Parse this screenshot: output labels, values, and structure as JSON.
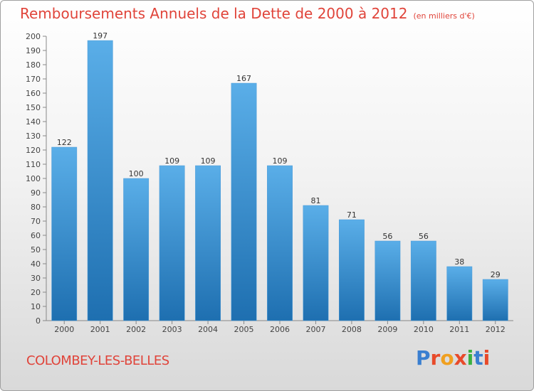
{
  "chart_data": {
    "type": "bar",
    "title": "Remboursements Annuels de la Dette de 2000 à 2012",
    "subtitle": "(en milliers d'€)",
    "categories": [
      "2000",
      "2001",
      "2002",
      "2003",
      "2004",
      "2005",
      "2006",
      "2007",
      "2008",
      "2009",
      "2010",
      "2011",
      "2012"
    ],
    "values": [
      122,
      197,
      100,
      109,
      109,
      167,
      109,
      81,
      71,
      56,
      56,
      38,
      29
    ],
    "ylim": [
      0,
      200
    ],
    "ytick_step": 10,
    "xlabel": "",
    "ylabel": "",
    "grid": false,
    "legend": "none"
  },
  "footer": {
    "city": "COLOMBEY-LES-BELLES",
    "brand": "Proxiti"
  },
  "colors": {
    "title": "#e0443a",
    "bar_top": "#5aaee8",
    "bar_bottom": "#1e6fb0",
    "axis": "#888888",
    "brand_letters": [
      "#3a7fd0",
      "#e84a2a",
      "#f0a020",
      "#e84a2a",
      "#3ab040",
      "#3a7fd0",
      "#e84a2a"
    ]
  }
}
